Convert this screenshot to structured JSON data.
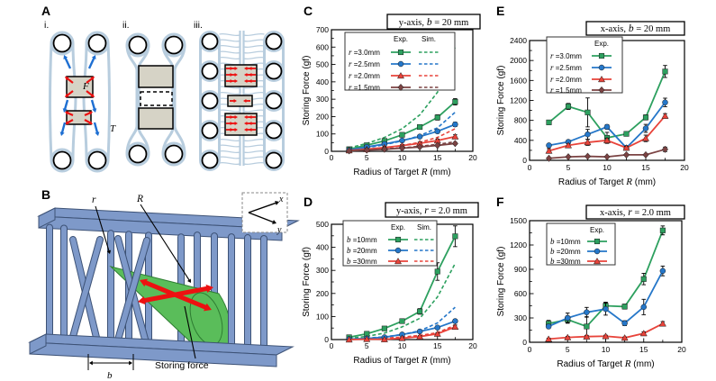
{
  "figure": {
    "panel_labels": {
      "A": "A",
      "B": "B",
      "C": "C",
      "D": "D",
      "E": "E",
      "F": "F"
    }
  },
  "colors": {
    "series_green": "#2da05f",
    "series_blue": "#2577c9",
    "series_red": "#e8433a",
    "series_brown": "#7b4343",
    "band_blue": "#b8cdde",
    "block_gray": "#d6d3c6",
    "slab_blue": "#7e99c9",
    "slab_edge": "#3d5276",
    "cone_green": "#5abd5a",
    "cone_edge": "#2e7d32",
    "arrow_red": "#ed1111",
    "arrow_blue": "#1e6fd2"
  },
  "schematic_a": {
    "unit_labels": [
      "i.",
      "ii.",
      "iii."
    ],
    "force_label": "F",
    "tension_label": "T"
  },
  "schematic_b": {
    "rod_radius_label": "r",
    "target_radius_label": "R",
    "spacing_label": "b",
    "axis_x_label": "x",
    "axis_y_label": "y",
    "storing_force_label": "Storing force"
  },
  "chart_data": [
    {
      "id": "C",
      "type": "line",
      "title": "y-axis, b = 20 mm",
      "xlabel": "Radius of Target R (mm)",
      "ylabel": "Storing Force (gf)",
      "xlim": [
        0,
        20
      ],
      "ylim": [
        0,
        700
      ],
      "xticks": [
        0,
        5,
        10,
        15,
        20
      ],
      "yticks": [
        0,
        100,
        200,
        300,
        400,
        500,
        600,
        700
      ],
      "legend_cols": [
        "Exp.",
        "Sim."
      ],
      "x": [
        2.5,
        5,
        7.5,
        10,
        12.5,
        15,
        17.5
      ],
      "series": [
        {
          "label": "r =3.0mm",
          "color": "#2da05f",
          "marker": "square",
          "exp": [
            12,
            35,
            60,
            95,
            140,
            195,
            285
          ],
          "err": [
            4,
            6,
            10,
            10,
            12,
            15,
            18
          ],
          "sim": [
            20,
            45,
            80,
            130,
            210,
            340,
            600
          ]
        },
        {
          "label": "r =2.5mm",
          "color": "#2577c9",
          "marker": "circle",
          "exp": [
            8,
            25,
            42,
            62,
            85,
            115,
            155
          ],
          "err": [
            3,
            5,
            6,
            8,
            9,
            10,
            12
          ],
          "sim": [
            8,
            20,
            38,
            60,
            90,
            135,
            225
          ]
        },
        {
          "label": "r =2.0mm",
          "color": "#e8433a",
          "marker": "triangle",
          "exp": [
            5,
            12,
            22,
            33,
            46,
            62,
            85
          ],
          "err": [
            3,
            4,
            5,
            6,
            7,
            8,
            10
          ],
          "sim": [
            5,
            10,
            20,
            33,
            52,
            80,
            130
          ]
        },
        {
          "label": "r =1.5mm",
          "color": "#7b4343",
          "marker": "diamond",
          "exp": [
            3,
            7,
            12,
            18,
            25,
            34,
            45
          ],
          "err": [
            2,
            3,
            3,
            4,
            4,
            5,
            6
          ],
          "sim": [
            3,
            8,
            14,
            20,
            29,
            40,
            55
          ]
        }
      ]
    },
    {
      "id": "D",
      "type": "line",
      "title": "y-axis, r = 2.0 mm",
      "xlabel": "Radius of Target R (mm)",
      "ylabel": "Storing Force (gf)",
      "xlim": [
        0,
        20
      ],
      "ylim": [
        0,
        500
      ],
      "xticks": [
        0,
        5,
        10,
        15,
        20
      ],
      "yticks": [
        0,
        100,
        200,
        300,
        400,
        500
      ],
      "legend_cols": [
        "Exp.",
        "Sim."
      ],
      "x": [
        2.5,
        5,
        7.5,
        10,
        12.5,
        15,
        17.5
      ],
      "series": [
        {
          "label": "b =10mm",
          "color": "#2da05f",
          "marker": "square",
          "exp": [
            10,
            25,
            48,
            80,
            122,
            295,
            448
          ],
          "err": [
            3,
            4,
            6,
            8,
            12,
            38,
            45
          ],
          "sim": [
            5,
            14,
            28,
            55,
            92,
            185,
            330
          ]
        },
        {
          "label": "b =20mm",
          "color": "#2577c9",
          "marker": "circle",
          "exp": [
            2,
            5,
            10,
            22,
            35,
            52,
            80
          ],
          "err": [
            2,
            2,
            3,
            4,
            5,
            6,
            8
          ],
          "sim": [
            2,
            6,
            12,
            22,
            38,
            72,
            140
          ]
        },
        {
          "label": "b =30mm",
          "color": "#e8433a",
          "marker": "triangle",
          "exp": [
            0,
            2,
            1,
            6,
            13,
            25,
            55
          ],
          "err": [
            1,
            2,
            2,
            3,
            4,
            5,
            8
          ],
          "sim": [
            1,
            3,
            6,
            11,
            18,
            30,
            62
          ]
        }
      ]
    },
    {
      "id": "E",
      "type": "line",
      "title": "x-axis, b = 20 mm",
      "xlabel": "Radius of Target R (mm)",
      "ylabel": "Storing Force (gf)",
      "xlim": [
        0,
        20
      ],
      "ylim": [
        0,
        2400
      ],
      "xticks": [
        0,
        5,
        10,
        15,
        20
      ],
      "yticks": [
        0,
        400,
        800,
        1200,
        1600,
        2000,
        2400
      ],
      "legend_cols": [
        "Exp."
      ],
      "x": [
        2.5,
        5,
        7.5,
        10,
        12.5,
        15,
        17.5
      ],
      "series": [
        {
          "label": "r =3.0mm",
          "color": "#2da05f",
          "marker": "square",
          "exp": [
            760,
            1080,
            960,
            450,
            530,
            860,
            1780
          ],
          "err": [
            40,
            60,
            290,
            110,
            40,
            50,
            120
          ]
        },
        {
          "label": "r =2.5mm",
          "color": "#2577c9",
          "marker": "circle",
          "exp": [
            300,
            370,
            520,
            670,
            250,
            640,
            1160
          ],
          "err": [
            25,
            35,
            100,
            45,
            30,
            80,
            85
          ]
        },
        {
          "label": "r =2.0mm",
          "color": "#e8433a",
          "marker": "triangle",
          "exp": [
            190,
            300,
            360,
            400,
            250,
            440,
            890
          ],
          "err": [
            45,
            30,
            60,
            45,
            30,
            65,
            45
          ]
        },
        {
          "label": "r =1.5mm",
          "color": "#7b4343",
          "marker": "diamond",
          "exp": [
            40,
            70,
            80,
            70,
            110,
            110,
            220
          ],
          "err": [
            10,
            12,
            12,
            12,
            18,
            18,
            45
          ]
        }
      ]
    },
    {
      "id": "F",
      "type": "line",
      "title": "x-axis, r = 2.0 mm",
      "xlabel": "Radius of Target R (mm)",
      "ylabel": "Storing Force (gf)",
      "xlim": [
        0,
        20
      ],
      "ylim": [
        0,
        1500
      ],
      "xticks": [
        0,
        5,
        10,
        15,
        20
      ],
      "yticks": [
        0,
        300,
        600,
        900,
        1200,
        1500
      ],
      "legend_cols": [
        "Exp."
      ],
      "x": [
        2.5,
        5,
        7.5,
        10,
        12.5,
        15,
        17.5
      ],
      "series": [
        {
          "label": "b =10mm",
          "color": "#2da05f",
          "marker": "square",
          "exp": [
            230,
            280,
            195,
            450,
            440,
            780,
            1380
          ],
          "err": [
            40,
            45,
            120,
            45,
            30,
            70,
            55
          ]
        },
        {
          "label": "b =20mm",
          "color": "#2577c9",
          "marker": "circle",
          "exp": [
            195,
            300,
            370,
            410,
            235,
            435,
            880
          ],
          "err": [
            25,
            60,
            60,
            75,
            30,
            95,
            60
          ]
        },
        {
          "label": "b =30mm",
          "color": "#e8433a",
          "marker": "triangle",
          "exp": [
            40,
            60,
            70,
            75,
            55,
            110,
            230
          ],
          "err": [
            10,
            12,
            15,
            12,
            10,
            18,
            25
          ]
        }
      ]
    }
  ]
}
